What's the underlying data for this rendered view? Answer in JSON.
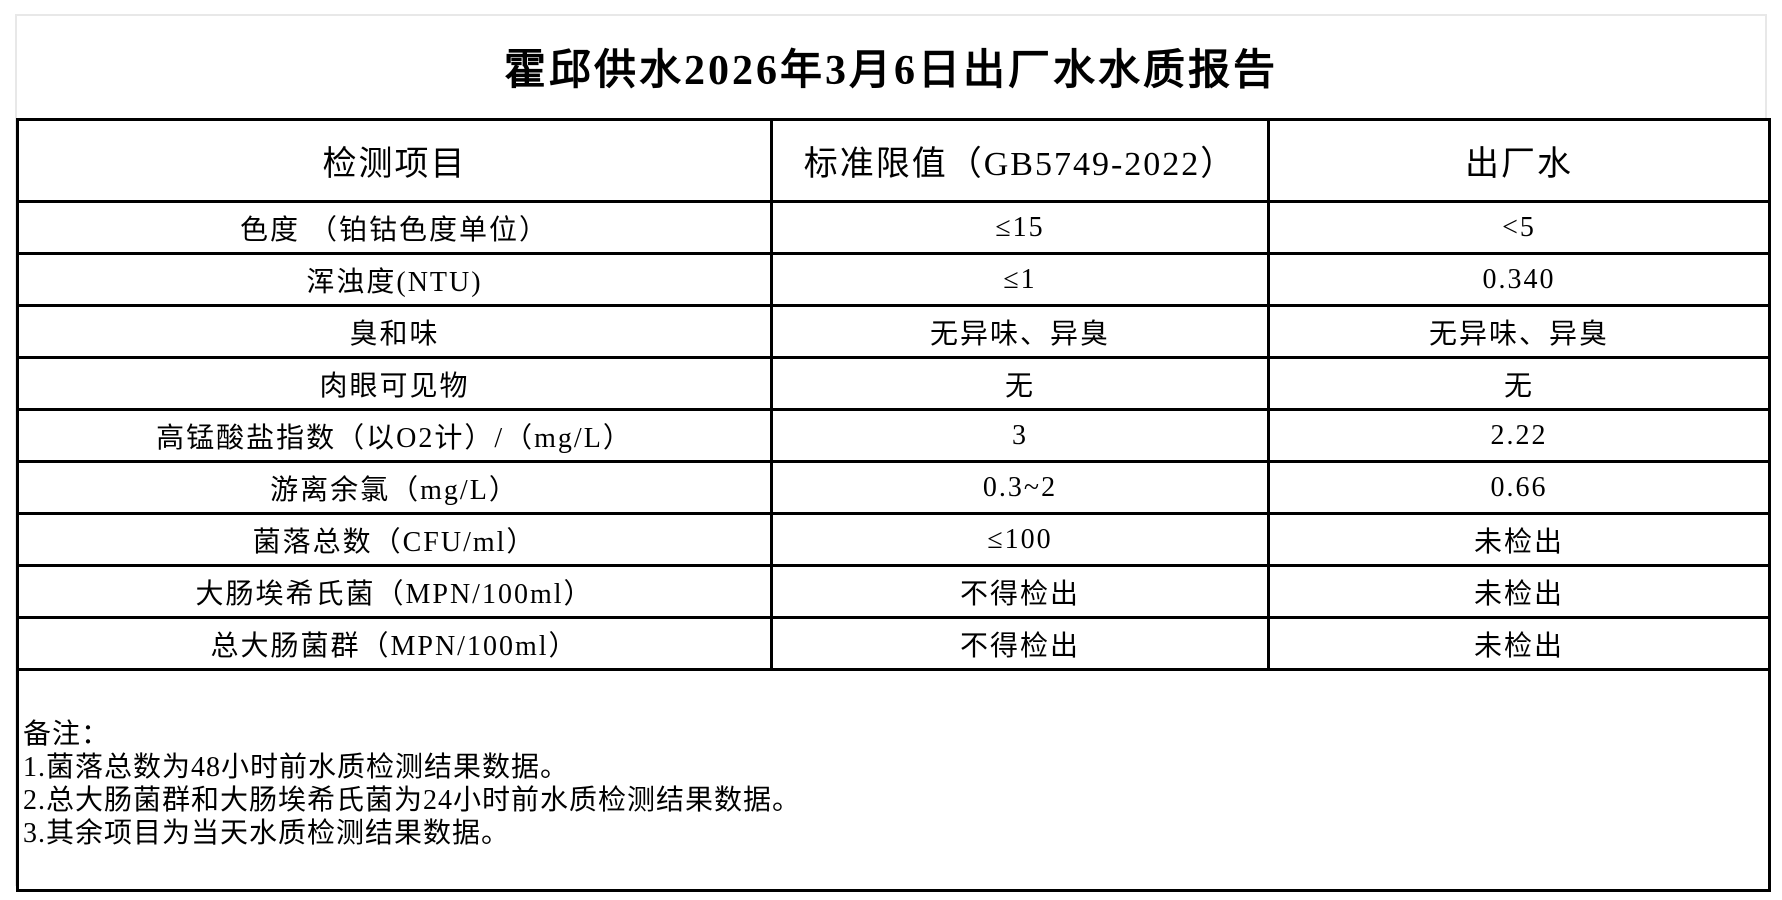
{
  "page": {
    "title": "霍邱供水2026年3月6日出厂水水质报告"
  },
  "table": {
    "headers": [
      "检测项目",
      "标准限值（GB5749-2022）",
      "出厂水"
    ],
    "rows": [
      {
        "item": "色度 （铂钴色度单位）",
        "limit": "≤15",
        "value": "<5"
      },
      {
        "item": "浑浊度(NTU)",
        "limit": "≤1",
        "value": "0.340"
      },
      {
        "item": "臭和味",
        "limit": "无异味、异臭",
        "value": "无异味、异臭"
      },
      {
        "item": "肉眼可见物",
        "limit": "无",
        "value": "无"
      },
      {
        "item": "高锰酸盐指数（以O2计）/（mg/L）",
        "limit": "3",
        "value": "2.22"
      },
      {
        "item": "游离余氯（mg/L）",
        "limit": "0.3~2",
        "value": "0.66"
      },
      {
        "item": "菌落总数（CFU/ml）",
        "limit": "≤100",
        "value": "未检出"
      },
      {
        "item": "大肠埃希氏菌（MPN/100ml）",
        "limit": "不得检出",
        "value": "未检出"
      },
      {
        "item": "总大肠菌群（MPN/100ml）",
        "limit": "不得检出",
        "value": "未检出"
      }
    ]
  },
  "notes": {
    "label": "备注：",
    "items": [
      "1.菌落总数为48小时前水质检测结果数据。",
      "2.总大肠菌群和大肠埃希氏菌为24小时前水质检测结果数据。",
      "3.其余项目为当天水质检测结果数据。"
    ]
  },
  "colors": {
    "table_border": "#000000",
    "page_frame": "#e8e8e8",
    "text": "#000000",
    "background": "#ffffff"
  }
}
